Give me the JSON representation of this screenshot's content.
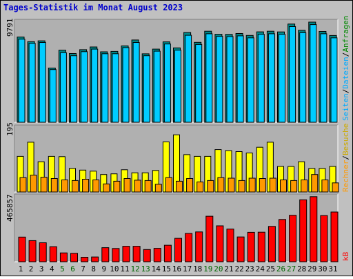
{
  "title": "Tages-Statistik im Monat August 2023",
  "colors": {
    "background": "#C0C0C0",
    "title": "#0000CC",
    "plot_bg": "#B0B0B0",
    "hits": "#00CCFF",
    "hits_dark": "#008800",
    "visits": "#FFFF00",
    "sites": "#FF9900",
    "kb": "#FF0000",
    "weekend_label": "#006600",
    "label": "#000000"
  },
  "chart_data": [
    {
      "type": "bar",
      "panel": "hits",
      "ymax_label": "9791",
      "ylim": [
        0,
        9791
      ],
      "series": [
        {
          "name": "Anfragen",
          "values": [
            8330,
            7880,
            7960,
            5300,
            7050,
            6720,
            7100,
            7360,
            6890,
            6930,
            7470,
            8040,
            6690,
            7150,
            7860,
            7270,
            8780,
            7810,
            8900,
            8600,
            8590,
            8680,
            8490,
            8840,
            8900,
            8830,
            9600,
            8990,
            9790,
            8880,
            8480
          ]
        },
        {
          "name": "Dateien",
          "values": [
            8120,
            7720,
            7800,
            5150,
            6800,
            6500,
            6900,
            7150,
            6700,
            6700,
            7300,
            7800,
            6500,
            6950,
            7650,
            7050,
            8500,
            7600,
            8650,
            8400,
            8380,
            8450,
            8250,
            8600,
            8650,
            8600,
            9350,
            8750,
            9550,
            8650,
            8250
          ]
        }
      ]
    },
    {
      "type": "bar",
      "panel": "visits",
      "ymax_label": "195",
      "ylim": [
        0,
        195
      ],
      "series": [
        {
          "name": "Besuche",
          "values": [
            106,
            148,
            90,
            106,
            105,
            70,
            65,
            62,
            52,
            54,
            66,
            57,
            57,
            64,
            149,
            170,
            111,
            106,
            106,
            126,
            123,
            120,
            116,
            133,
            148,
            76,
            76,
            90,
            70,
            70,
            76
          ]
        },
        {
          "name": "Rechner",
          "values": [
            43,
            50,
            44,
            40,
            36,
            34,
            38,
            36,
            24,
            32,
            40,
            35,
            34,
            23,
            43,
            32,
            40,
            30,
            34,
            43,
            41,
            34,
            41,
            40,
            41,
            36,
            34,
            36,
            52,
            36,
            27
          ]
        }
      ]
    },
    {
      "type": "bar",
      "panel": "kb",
      "ymax_label": "465857",
      "ylim": [
        0,
        465857
      ],
      "series": [
        {
          "name": "kB",
          "values": [
            175000,
            150000,
            135000,
            107000,
            63000,
            60000,
            32000,
            34000,
            100000,
            94000,
            110000,
            110000,
            87000,
            95000,
            117000,
            166000,
            201000,
            212000,
            323000,
            255000,
            232000,
            176000,
            209000,
            210000,
            251000,
            300000,
            330000,
            440000,
            462000,
            328000,
            353000
          ]
        }
      ]
    }
  ],
  "x_labels": [
    "1",
    "2",
    "3",
    "4",
    "5",
    "6",
    "7",
    "8",
    "9",
    "10",
    "11",
    "12",
    "13",
    "14",
    "15",
    "16",
    "17",
    "18",
    "19",
    "20",
    "21",
    "22",
    "23",
    "24",
    "25",
    "26",
    "27",
    "28",
    "29",
    "30",
    "31"
  ],
  "weekend_days": [
    "5",
    "6",
    "12",
    "13",
    "19",
    "20",
    "26",
    "27"
  ],
  "side_labels": {
    "hits": [
      "Anfragen",
      "Dateien",
      "Seiten"
    ],
    "visits": [
      "Besuche",
      "Rechner"
    ],
    "kb": "kB",
    "separator": "/"
  }
}
